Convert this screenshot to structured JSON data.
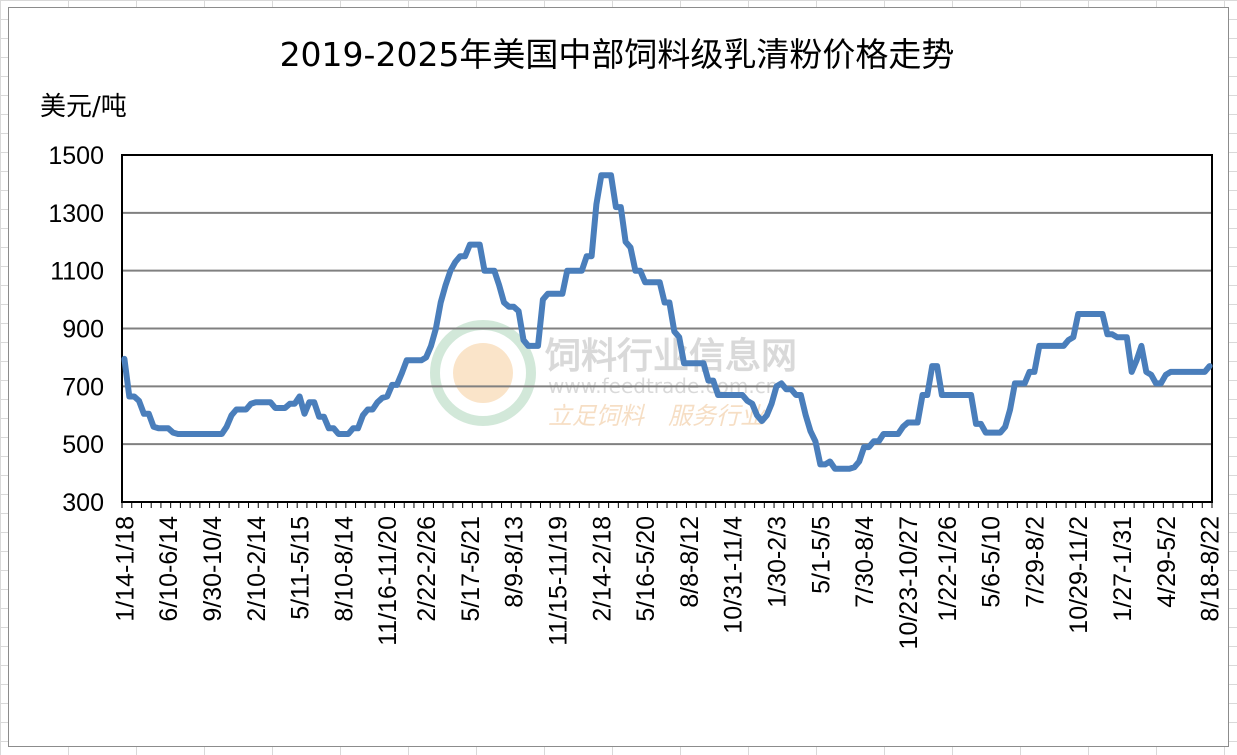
{
  "chart_data": {
    "type": "line",
    "title": "2019-2025年美国中部饲料级乳清粉价格走势",
    "ylabel": "美元/吨",
    "xlabel": "",
    "ylim": [
      300,
      1500
    ],
    "yticks": [
      300,
      500,
      700,
      900,
      1100,
      1300,
      1500
    ],
    "grid": "horizontal",
    "legend": "none",
    "color": "#4a7ebb",
    "tick_labels": [
      "1/14-1/18",
      "6/10-6/14",
      "9/30-10/4",
      "2/10-2/14",
      "5/11-5/15",
      "8/10-8/14",
      "11/16-11/20",
      "2/22-2/26",
      "5/17-5/21",
      "8/9-8/13",
      "11/15-11/19",
      "2/14-2/18",
      "5/16-5/20",
      "8/8-8/12",
      "10/31-11/4",
      "1/30-2/3",
      "5/1-5/5",
      "7/30-8/4",
      "10/23-10/27",
      "1/22-1/26",
      "5/6-5/10",
      "7/29-8/2",
      "10/29-11/2",
      "1/27-1/31",
      "4/29-5/2",
      "8/18-8/22"
    ],
    "series": [
      {
        "values": [
          795,
          665,
          665,
          650,
          605,
          605,
          560,
          555,
          555,
          555,
          540,
          535,
          535,
          535,
          535,
          535,
          535,
          535,
          535,
          535,
          535,
          560,
          600,
          620,
          620,
          620,
          640,
          645,
          645,
          645,
          645,
          625,
          625,
          625,
          640,
          640,
          665,
          605,
          645,
          645,
          595,
          595,
          555,
          555,
          535,
          535,
          535,
          555,
          555,
          600,
          620,
          620,
          645,
          660,
          665,
          705,
          705,
          745,
          790,
          790,
          790,
          790,
          800,
          840,
          900,
          990,
          1050,
          1100,
          1130,
          1150,
          1150,
          1190,
          1190,
          1190,
          1100,
          1100,
          1100,
          1050,
          990,
          975,
          975,
          960,
          860,
          840,
          840,
          840,
          1000,
          1020,
          1020,
          1020,
          1020,
          1100,
          1100,
          1100,
          1100,
          1150,
          1150,
          1330,
          1430,
          1430,
          1430,
          1320,
          1320,
          1200,
          1180,
          1100,
          1100,
          1060,
          1060,
          1060,
          1060,
          990,
          990,
          890,
          870,
          780,
          780,
          780,
          780,
          780,
          720,
          720,
          670,
          670,
          670,
          670,
          670,
          670,
          650,
          640,
          600,
          580,
          600,
          640,
          700,
          710,
          690,
          690,
          670,
          670,
          600,
          545,
          510,
          430,
          430,
          440,
          415,
          415,
          415,
          415,
          420,
          440,
          490,
          490,
          510,
          510,
          535,
          535,
          535,
          535,
          560,
          575,
          575,
          575,
          670,
          670,
          770,
          770,
          670,
          670,
          670,
          670,
          670,
          670,
          670,
          570,
          570,
          540,
          540,
          540,
          540,
          560,
          620,
          710,
          710,
          710,
          750,
          750,
          840,
          840,
          840,
          840,
          840,
          840,
          860,
          870,
          950,
          950,
          950,
          950,
          950,
          950,
          880,
          880,
          870,
          870,
          870,
          750,
          790,
          840,
          750,
          740,
          710,
          710,
          740,
          750,
          750,
          750,
          750,
          750,
          750,
          750,
          750,
          770
        ]
      }
    ]
  },
  "watermark": {
    "name": "饲料行业信息网",
    "url": "www.feedtrade.com.cn",
    "slogan": "立足饲料　服务行业"
  }
}
